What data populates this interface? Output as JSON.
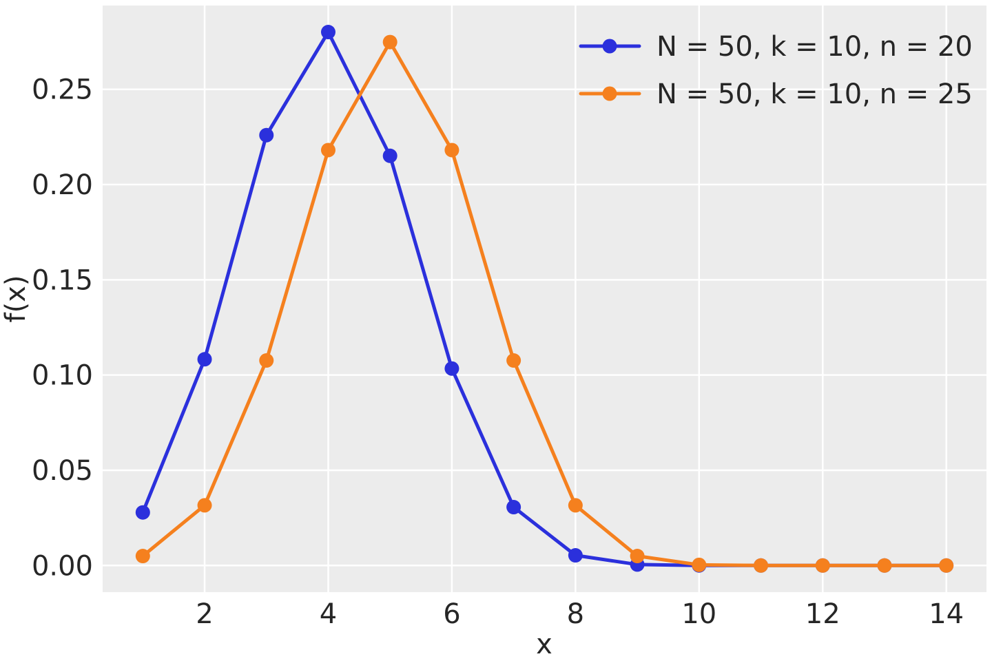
{
  "figure": {
    "background": "#ffffff",
    "plot_background": "#ececec",
    "grid_color": "#ffffff",
    "text_color": "#262626"
  },
  "chart_data": {
    "type": "line",
    "title": "",
    "xlabel": "x",
    "ylabel": "f(x)",
    "x": [
      1,
      2,
      3,
      4,
      5,
      6,
      7,
      8,
      9,
      10,
      11,
      12,
      13,
      14
    ],
    "series": [
      {
        "name": "N = 50, k = 10, n = 20",
        "color": "#2b30dc",
        "marker": "circle",
        "values": [
          0.02786,
          0.10826,
          0.22593,
          0.28006,
          0.21508,
          0.1034,
          0.03064,
          0.00533,
          0.00049,
          2e-05,
          0,
          0,
          0,
          0
        ]
      },
      {
        "name": "N = 50, k = 10, n = 25",
        "color": "#f5801e",
        "marker": "circle",
        "values": [
          0.00497,
          0.03159,
          0.10763,
          0.21809,
          0.2748,
          0.21809,
          0.10763,
          0.03159,
          0.00497,
          0.00032,
          0,
          0,
          0,
          0
        ]
      }
    ],
    "xticks": [
      2,
      4,
      6,
      8,
      10,
      12,
      14
    ],
    "xtick_labels": [
      "2",
      "4",
      "6",
      "8",
      "10",
      "12",
      "14"
    ],
    "yticks": [
      0,
      0.05,
      0.1,
      0.15,
      0.2,
      0.25
    ],
    "ytick_labels": [
      "0.00",
      "0.05",
      "0.10",
      "0.15",
      "0.20",
      "0.25"
    ],
    "xlim": [
      0.35,
      14.65
    ],
    "ylim": [
      -0.014,
      0.294
    ],
    "grid": true,
    "legend_position": "upper right",
    "line_width": 5,
    "marker_radius": 10.5
  }
}
